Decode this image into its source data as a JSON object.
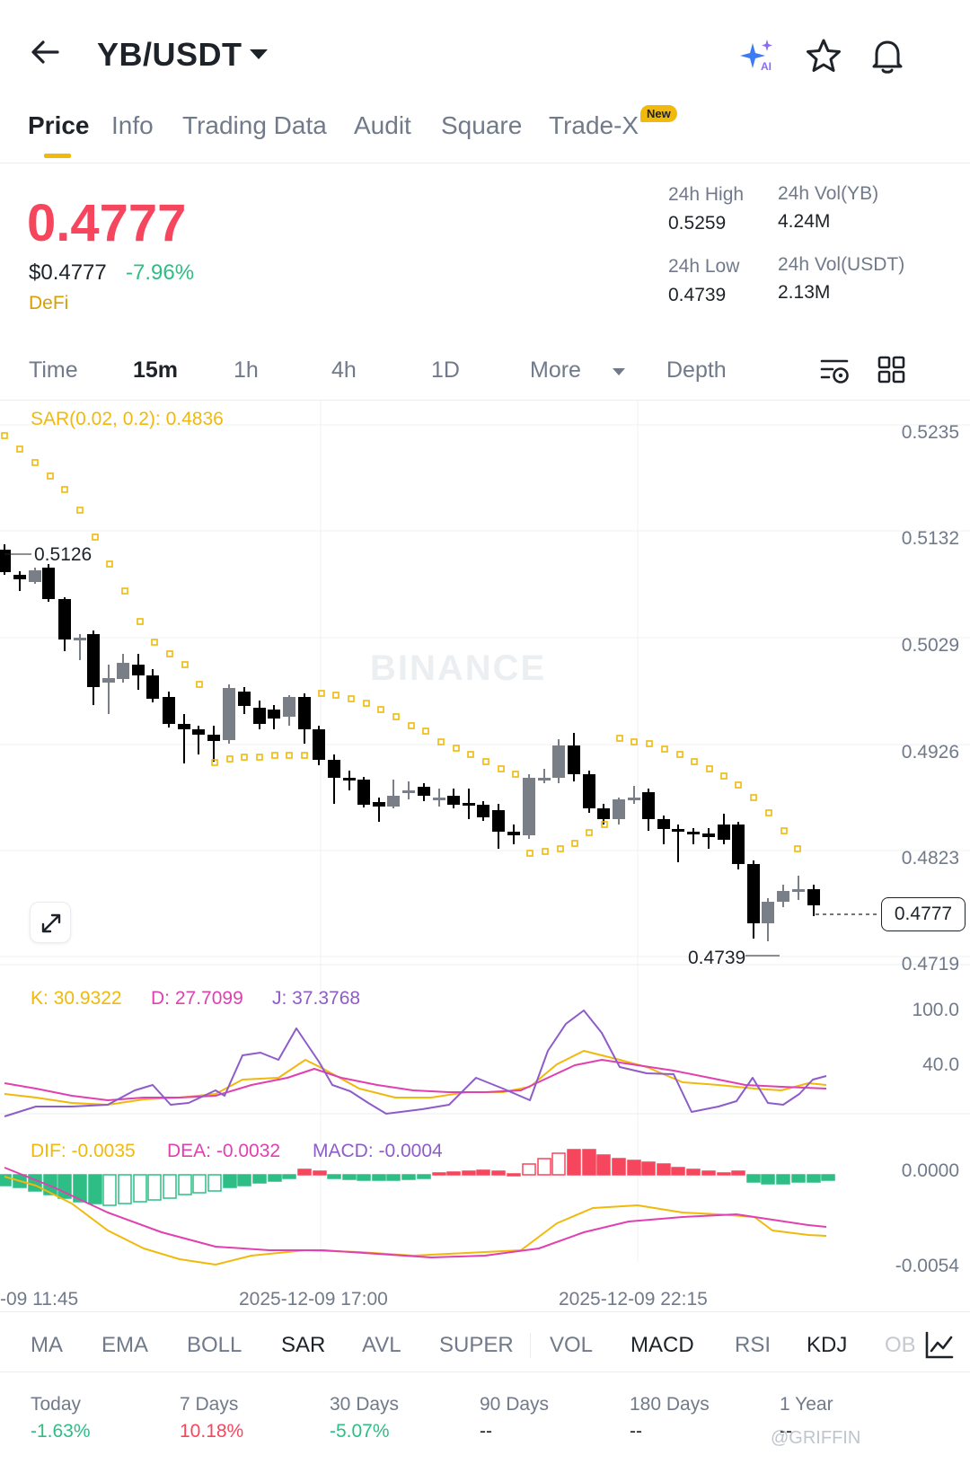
{
  "header": {
    "pair": "YB/USDT",
    "icons": [
      "back-arrow-icon",
      "ai-sparkle-icon",
      "star-icon",
      "bell-icon"
    ]
  },
  "tabs": [
    {
      "label": "Price",
      "active": true
    },
    {
      "label": "Info"
    },
    {
      "label": "Trading Data"
    },
    {
      "label": "Audit"
    },
    {
      "label": "Square"
    },
    {
      "label": "Trade-X",
      "badge": "New"
    }
  ],
  "ticker": {
    "last_price": "0.4777",
    "usd_price": "$0.4777",
    "change_pct": "-7.96%",
    "tag": "DeFi",
    "high_24h_label": "24h High",
    "high_24h": "0.5259",
    "low_24h_label": "24h Low",
    "low_24h": "0.4739",
    "vol_base_label": "24h Vol(YB)",
    "vol_base": "4.24M",
    "vol_quote_label": "24h Vol(USDT)",
    "vol_quote": "2.13M"
  },
  "timeframes": [
    {
      "label": "Time"
    },
    {
      "label": "15m",
      "active": true
    },
    {
      "label": "1h"
    },
    {
      "label": "4h"
    },
    {
      "label": "1D"
    },
    {
      "label": "More"
    },
    {
      "label": "Depth"
    }
  ],
  "chart": {
    "watermark": "BINANCE",
    "sar_label": "SAR(0.02, 0.2): 0.4836",
    "price_axis": [
      "0.5235",
      "0.5132",
      "0.5029",
      "0.4926",
      "0.4823",
      "0.4719"
    ],
    "current_price": "0.4777",
    "high_marker": "0.5126",
    "low_marker": "0.4739",
    "kdj": {
      "k": "K: 30.9322",
      "d": "D: 27.7099",
      "j": "J: 37.3768",
      "axis": [
        "100.0",
        "40.0"
      ]
    },
    "macd": {
      "dif": "DIF: -0.0035",
      "dea": "DEA: -0.0032",
      "macd": "MACD: -0.0004",
      "axis": [
        "0.0000",
        "-0.0054"
      ]
    },
    "time_axis": [
      "-09 11:45",
      "2025-12-09 17:00",
      "2025-12-09 22:15"
    ],
    "colors": {
      "up": "#2ebd85",
      "down": "#f6465d",
      "sar": "#f0b90b",
      "k": "#f0b90b",
      "d": "#e040b0",
      "j": "#8e5cc9"
    }
  },
  "indicator_tabs": [
    {
      "label": "MA"
    },
    {
      "label": "EMA"
    },
    {
      "label": "BOLL"
    },
    {
      "label": "SAR",
      "active": true
    },
    {
      "label": "AVL"
    },
    {
      "label": "SUPER"
    },
    {
      "label": "VOL"
    },
    {
      "label": "MACD",
      "active": true
    },
    {
      "label": "RSI"
    },
    {
      "label": "KDJ",
      "active": true
    },
    {
      "label": "OB"
    }
  ],
  "periods": [
    {
      "label": "Today",
      "value": "-1.63%",
      "color": "#2ebd85"
    },
    {
      "label": "7 Days",
      "value": "10.18%",
      "color": "#f6465d"
    },
    {
      "label": "30 Days",
      "value": "-5.07%",
      "color": "#2ebd85"
    },
    {
      "label": "90 Days",
      "value": "--",
      "color": "#1e2329"
    },
    {
      "label": "180 Days",
      "value": "--",
      "color": "#1e2329"
    },
    {
      "label": "1 Year",
      "value": "--",
      "color": "#1e2329"
    }
  ],
  "corner_watermark": "@GRIFFIN"
}
